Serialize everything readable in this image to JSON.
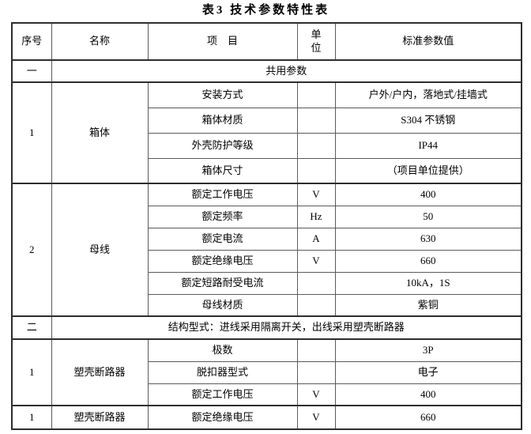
{
  "title": "表3 技术参数特性表",
  "table": {
    "header": [
      "序号",
      "名称",
      "项　目",
      "单位",
      "标准参数值"
    ],
    "rows": [
      {
        "type": "section",
        "cells": [
          {
            "t": "一"
          },
          {
            "t": "共用参数",
            "cs": 4
          }
        ]
      },
      {
        "type": "group",
        "cells": [
          {
            "t": "1",
            "rs": 4
          },
          {
            "t": "箱体",
            "rs": 4
          },
          {
            "t": "安装方式"
          },
          {
            "t": ""
          },
          {
            "t": "户外/户内，落地式/挂墙式"
          }
        ]
      },
      {
        "cells": [
          {
            "t": "箱体材质"
          },
          {
            "t": ""
          },
          {
            "t": "S304 不锈钢"
          }
        ]
      },
      {
        "cells": [
          {
            "t": "外壳防护等级"
          },
          {
            "t": ""
          },
          {
            "t": "IP44"
          }
        ]
      },
      {
        "cells": [
          {
            "t": "箱体尺寸"
          },
          {
            "t": ""
          },
          {
            "t": "（项目单位提供）"
          }
        ]
      },
      {
        "type": "group",
        "cells": [
          {
            "t": "2",
            "rs": 6
          },
          {
            "t": "母线",
            "rs": 6
          },
          {
            "t": "额定工作电压"
          },
          {
            "t": "V"
          },
          {
            "t": "400"
          }
        ]
      },
      {
        "cells": [
          {
            "t": "额定频率"
          },
          {
            "t": "Hz"
          },
          {
            "t": "50"
          }
        ]
      },
      {
        "cells": [
          {
            "t": "额定电流"
          },
          {
            "t": "A"
          },
          {
            "t": "630"
          }
        ]
      },
      {
        "cells": [
          {
            "t": "额定绝缘电压"
          },
          {
            "t": "V"
          },
          {
            "t": "660"
          }
        ]
      },
      {
        "cells": [
          {
            "t": "额定短路耐受电流"
          },
          {
            "t": ""
          },
          {
            "t": "10kA，1S"
          }
        ]
      },
      {
        "cells": [
          {
            "t": "母线材质"
          },
          {
            "t": ""
          },
          {
            "t": "紫铜"
          }
        ]
      },
      {
        "type": "section",
        "cells": [
          {
            "t": "二"
          },
          {
            "t": "结构型式：进线采用隔离开关，出线采用塑壳断路器",
            "cs": 4
          }
        ]
      },
      {
        "type": "group",
        "cells": [
          {
            "t": "1",
            "rs": 3
          },
          {
            "t": "塑壳断路器",
            "rs": 3
          },
          {
            "t": "极数"
          },
          {
            "t": ""
          },
          {
            "t": "3P"
          }
        ]
      },
      {
        "cells": [
          {
            "t": "脱扣器型式"
          },
          {
            "t": ""
          },
          {
            "t": "电子"
          }
        ]
      },
      {
        "cells": [
          {
            "t": "额定工作电压"
          },
          {
            "t": "V"
          },
          {
            "t": "400"
          }
        ]
      },
      {
        "type": "group",
        "cells": [
          {
            "t": "1"
          },
          {
            "t": "塑壳断路器"
          },
          {
            "t": "额定绝缘电压"
          },
          {
            "t": "V"
          },
          {
            "t": "660"
          }
        ]
      }
    ]
  }
}
